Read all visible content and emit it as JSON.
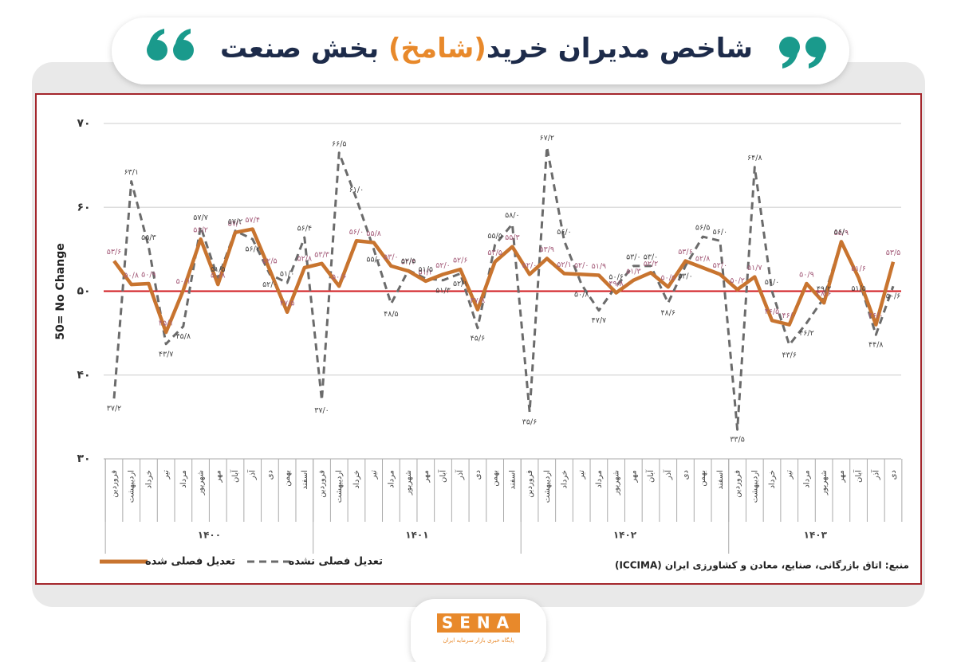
{
  "chart_data": {
    "type": "line",
    "title": [
      "شاخص مدیران خرید",
      "(شامخ)",
      " بخش صنعت"
    ],
    "ylabel": "50= No Change",
    "ylim": [
      30,
      70
    ],
    "yticks": [
      {
        "value": 30,
        "label": "۳۰"
      },
      {
        "value": 40,
        "label": "۴۰"
      },
      {
        "value": 50,
        "label": "۵۰"
      },
      {
        "value": 60,
        "label": "۶۰"
      },
      {
        "value": 70,
        "label": "۷۰"
      }
    ],
    "grid": true,
    "reference_line": {
      "value": 50,
      "color": "#d0191d"
    },
    "categories": [
      "فروردین",
      "اردیبهشت",
      "خرداد",
      "تیر",
      "مرداد",
      "شهریور",
      "مهر",
      "آبان",
      "آذر",
      "دی",
      "بهمن",
      "اسفند",
      "فروردین",
      "اردیبهشت",
      "خرداد",
      "تیر",
      "مرداد",
      "شهریور",
      "مهر",
      "آبان",
      "آذر",
      "دی",
      "بهمن",
      "اسفند",
      "فروردین",
      "اردیبهشت",
      "خرداد",
      "تیر",
      "مرداد",
      "شهریور",
      "مهر",
      "آبان",
      "آذر",
      "دی",
      "بهمن",
      "اسفند",
      "فروردین",
      "اردیبهشت",
      "خرداد",
      "تیر",
      "مرداد",
      "شهریور",
      "مهر",
      "آبان",
      "آذر",
      "دی"
    ],
    "groups": [
      {
        "label": "۱۴۰۰",
        "size": 12
      },
      {
        "label": "۱۴۰۱",
        "size": 12
      },
      {
        "label": "۱۴۰۲",
        "size": 12
      },
      {
        "label": "۱۴۰۳",
        "size": 10
      }
    ],
    "series": [
      {
        "name": "تعدیل فصلی شده",
        "color": "#c8742f",
        "dash": false,
        "values": [
          53.6,
          50.8,
          50.9,
          45.1,
          50.1,
          56.2,
          50.8,
          57,
          57.4,
          52.5,
          47.5,
          52.8,
          53.3,
          50.6,
          56,
          55.8,
          53,
          52.4,
          51.2,
          52,
          52.6,
          47.8,
          53.5,
          55.3,
          52,
          53.9,
          52.1,
          52,
          51.9,
          49.8,
          51.3,
          52.2,
          50.5,
          53.6,
          52.8,
          52,
          50.2,
          51.7,
          46.5,
          46,
          50.9,
          48.6,
          55.9,
          51.6,
          46,
          53.5
        ],
        "value_labels": [
          "۵۳/۶",
          "۵۰/۸",
          "۵۰/۹",
          "۴۵/۱",
          "۵۰/۱",
          "۵۶/۲",
          "۵۰/۸",
          "۵۷/۰",
          "۵۷/۴",
          "۵۲/۵",
          "۴۷/۵",
          "۵۲/۸",
          "۵۳/۳",
          "۵۰/۶",
          "۵۶/۰",
          "۵۵/۸",
          "۵۳/۰",
          "۵۲/۴",
          "۵۱/۲",
          "۵۲/۰",
          "۵۲/۶",
          "۴۷/۸",
          "۵۳/۵",
          "۵۵/۳",
          "۵۲/۰",
          "۵۳/۹",
          "۵۲/۱",
          "۵۲/۰",
          "۵۱/۹",
          "۴۹/۸",
          "۵۱/۳",
          "۵۲/۲",
          "۵۰/۵",
          "۵۳/۶",
          "۵۲/۸",
          "۵۲/۰",
          "۵۰/۲",
          "۵۱/۷",
          "۴۶/۵",
          "۴۶/۰",
          "۵۰/۹",
          "۴۸/۶",
          "۵۵/۹",
          "۵۱/۶",
          "۴۶/۰",
          "۵۳/۵"
        ]
      },
      {
        "name": "تعدیل فصلی نشده",
        "color": "#6b6b6b",
        "dash": true,
        "values": [
          37.2,
          63.1,
          55.3,
          43.7,
          45.8,
          57.7,
          51.5,
          57.2,
          56.2,
          52,
          51,
          56.4,
          37,
          66.5,
          61,
          55,
          48.5,
          52.5,
          51.5,
          51.3,
          52.1,
          45.6,
          55.5,
          58,
          35.6,
          67.2,
          56,
          50.8,
          47.7,
          50.6,
          53,
          53,
          48.6,
          53,
          56.5,
          56,
          33.5,
          64.8,
          50,
          43.6,
          46.2,
          49.2,
          56,
          51.5,
          44.8,
          50.6
        ],
        "value_labels": [
          "۳۷/۲",
          "۶۳/۱",
          "۵۵/۳",
          "۴۳/۷",
          "۴۵/۸",
          "۵۷/۷",
          "۵۱/۵",
          "۵۷/۲",
          "۵۶/۲",
          "۵۲/۰",
          "۵۱/۰",
          "۵۶/۴",
          "۳۷/۰",
          "۶۶/۵",
          "۶۱/۰",
          "۵۵/۰",
          "۴۸/۵",
          "۵۲/۵",
          "۵۱/۵",
          "۵۱/۳",
          "۵۲/۱",
          "۴۵/۶",
          "۵۵/۵",
          "۵۸/۰",
          "۳۵/۶",
          "۶۷/۲",
          "۵۶/۰",
          "۵۰/۸",
          "۴۷/۷",
          "۵۰/۶",
          "۵۳/۰",
          "۵۳/۰",
          "۴۸/۶",
          "۵۳/۰",
          "۵۶/۵",
          "۵۶/۰",
          "۳۳/۵",
          "۶۴/۸",
          "۵۰/۰",
          "۴۳/۶",
          "۴۶/۲",
          "۴۹/۲",
          "۵۶/۰",
          "۵۱/۵",
          "۴۴/۸",
          "۵۰/۶"
        ]
      }
    ],
    "source": "منبع: اتاق بازرگانی، صنایع، معادن و کشاورزی ایران (ICCIMA)"
  },
  "logo": {
    "name": "SENA",
    "tagline": "پایگاه خبری بازار سرمایه ایران"
  }
}
